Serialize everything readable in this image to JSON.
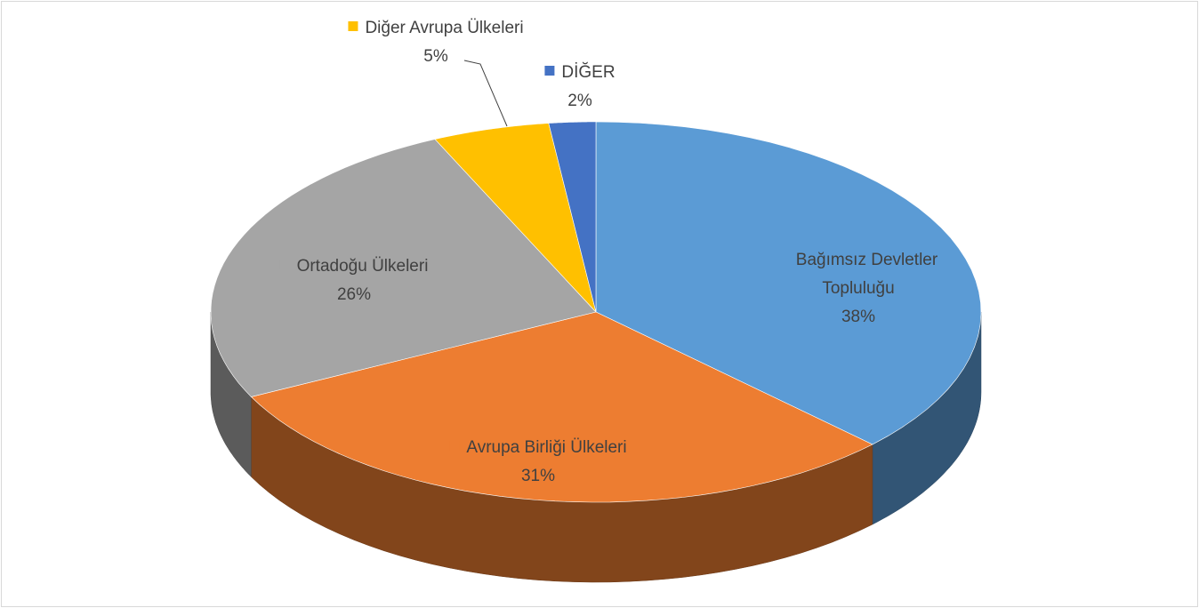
{
  "chart_data": {
    "type": "pie",
    "categories": [
      "Bağımsız Devletler Topluluğu",
      "Avrupa Birliği Ülkeleri",
      "Ortadoğu Ülkeleri",
      "Diğer Avrupa Ülkeleri",
      "DİĞER"
    ],
    "values": [
      38,
      31,
      26,
      5,
      2
    ],
    "value_labels": [
      "38%",
      "31%",
      "26%",
      "5%",
      "2%"
    ],
    "colors": [
      "#5b9bd5",
      "#ed7d31",
      "#a5a5a5",
      "#ffc000",
      "#4472c4"
    ]
  }
}
